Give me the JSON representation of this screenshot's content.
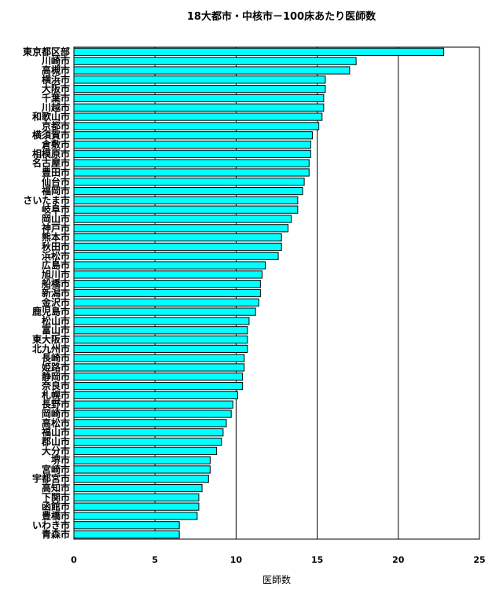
{
  "chart_data": {
    "type": "bar",
    "orientation": "horizontal",
    "title": "18大都市・中核市－100床あたり医師数",
    "xlabel": "医師数",
    "ylabel": "",
    "xlim": [
      0,
      25
    ],
    "xticks": [
      0,
      5,
      10,
      15,
      20,
      25
    ],
    "grid": "vertical",
    "bar_color": "#00ffff",
    "categories": [
      "東京都区部",
      "川崎市",
      "高槻市",
      "横浜市",
      "大阪市",
      "千葉市",
      "川越市",
      "和歌山市",
      "京都市",
      "横須賀市",
      "倉敷市",
      "相模原市",
      "名古屋市",
      "豊田市",
      "仙台市",
      "福岡市",
      "さいたま市",
      "岐阜市",
      "岡山市",
      "神戸市",
      "熊本市",
      "秋田市",
      "浜松市",
      "広島市",
      "旭川市",
      "船橋市",
      "新潟市",
      "金沢市",
      "鹿児島市",
      "松山市",
      "富山市",
      "東大阪市",
      "北九州市",
      "長崎市",
      "姫路市",
      "静岡市",
      "奈良市",
      "札幌市",
      "長野市",
      "岡崎市",
      "高松市",
      "福山市",
      "郡山市",
      "大分市",
      "堺市",
      "宮崎市",
      "宇都宮市",
      "高知市",
      "下関市",
      "函館市",
      "豊橋市",
      "いわき市",
      "青森市"
    ],
    "values": [
      22.8,
      17.4,
      17.0,
      15.5,
      15.5,
      15.4,
      15.4,
      15.3,
      15.1,
      14.7,
      14.6,
      14.6,
      14.5,
      14.5,
      14.2,
      14.1,
      13.8,
      13.8,
      13.4,
      13.2,
      12.8,
      12.8,
      12.6,
      11.8,
      11.6,
      11.5,
      11.5,
      11.4,
      11.2,
      10.8,
      10.7,
      10.7,
      10.7,
      10.5,
      10.5,
      10.4,
      10.4,
      10.1,
      9.8,
      9.7,
      9.4,
      9.2,
      9.1,
      8.8,
      8.4,
      8.4,
      8.3,
      7.9,
      7.7,
      7.7,
      7.6,
      6.5,
      6.5
    ]
  }
}
